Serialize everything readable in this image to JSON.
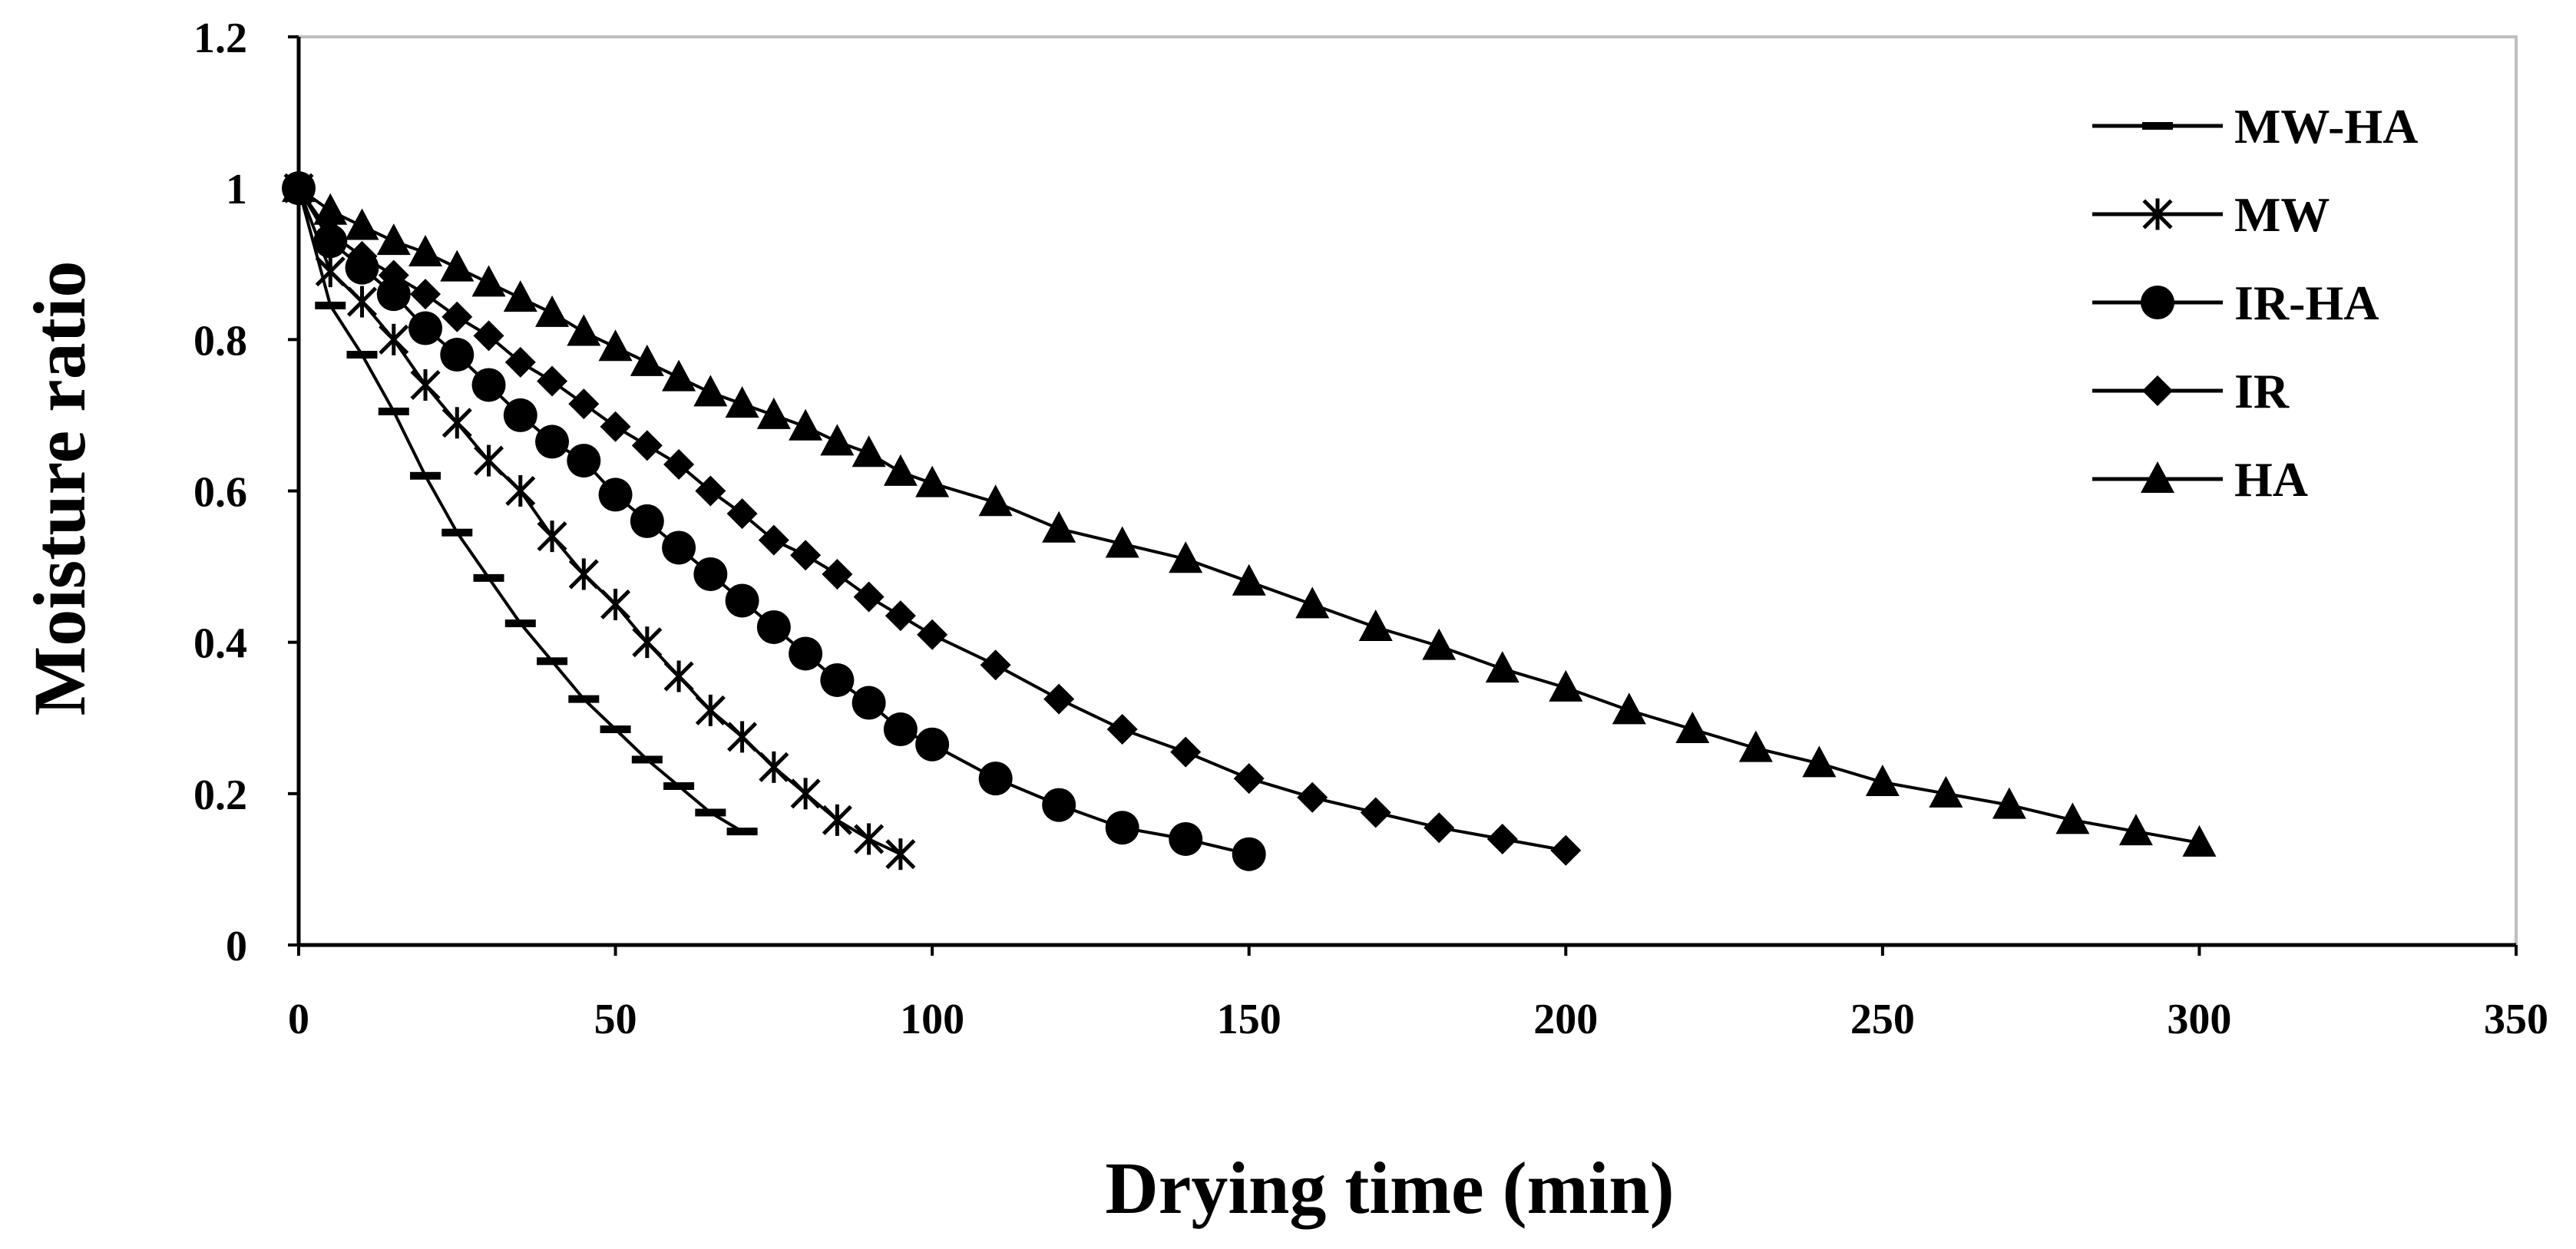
{
  "chart_data": {
    "type": "line",
    "title": "",
    "xlabel": "Drying time (min)",
    "ylabel": "Moisture ratio",
    "xlim": [
      0,
      350
    ],
    "ylim": [
      0,
      1.2
    ],
    "xticks": [
      "0",
      "50",
      "100",
      "150",
      "200",
      "250",
      "300",
      "350"
    ],
    "yticks": [
      "0",
      "0.2",
      "0.4",
      "0.6",
      "0.8",
      "1",
      "1.2"
    ],
    "grid": false,
    "legend_position": "top-right",
    "series": [
      {
        "name": "MW-HA",
        "marker": "dash",
        "x": [
          0,
          5,
          10,
          15,
          20,
          25,
          30,
          35,
          40,
          45,
          50,
          55,
          60,
          65,
          70
        ],
        "y": [
          1.0,
          0.845,
          0.78,
          0.705,
          0.62,
          0.545,
          0.485,
          0.425,
          0.375,
          0.325,
          0.285,
          0.245,
          0.21,
          0.175,
          0.15
        ]
      },
      {
        "name": "MW",
        "marker": "asterisk",
        "x": [
          0,
          5,
          10,
          15,
          20,
          25,
          30,
          35,
          40,
          45,
          50,
          55,
          60,
          65,
          70,
          75,
          80,
          85,
          90,
          95
        ],
        "y": [
          1.0,
          0.89,
          0.85,
          0.8,
          0.74,
          0.69,
          0.64,
          0.6,
          0.54,
          0.49,
          0.45,
          0.4,
          0.355,
          0.31,
          0.275,
          0.235,
          0.2,
          0.165,
          0.14,
          0.12
        ]
      },
      {
        "name": "IR-HA",
        "marker": "circle",
        "x": [
          0,
          5,
          10,
          15,
          20,
          25,
          30,
          35,
          40,
          45,
          50,
          55,
          60,
          65,
          70,
          75,
          80,
          85,
          90,
          95,
          100,
          110,
          120,
          130,
          140,
          150
        ],
        "y": [
          1.0,
          0.93,
          0.895,
          0.86,
          0.815,
          0.78,
          0.74,
          0.7,
          0.665,
          0.64,
          0.595,
          0.56,
          0.525,
          0.49,
          0.455,
          0.42,
          0.385,
          0.35,
          0.32,
          0.285,
          0.265,
          0.22,
          0.185,
          0.155,
          0.14,
          0.12
        ]
      },
      {
        "name": "IR",
        "marker": "diamond",
        "x": [
          0,
          5,
          10,
          15,
          20,
          25,
          30,
          35,
          40,
          45,
          50,
          55,
          60,
          65,
          70,
          75,
          80,
          85,
          90,
          95,
          100,
          110,
          120,
          130,
          140,
          150,
          160,
          170,
          180,
          190,
          200
        ],
        "y": [
          1.0,
          0.94,
          0.91,
          0.885,
          0.86,
          0.83,
          0.805,
          0.77,
          0.745,
          0.715,
          0.685,
          0.66,
          0.635,
          0.6,
          0.57,
          0.535,
          0.515,
          0.49,
          0.46,
          0.435,
          0.41,
          0.37,
          0.325,
          0.285,
          0.255,
          0.22,
          0.195,
          0.175,
          0.155,
          0.14,
          0.125
        ]
      },
      {
        "name": "HA",
        "marker": "triangle",
        "x": [
          0,
          5,
          10,
          15,
          20,
          25,
          30,
          35,
          40,
          45,
          50,
          55,
          60,
          65,
          70,
          75,
          80,
          85,
          90,
          95,
          100,
          110,
          120,
          130,
          140,
          150,
          160,
          170,
          180,
          190,
          200,
          210,
          220,
          230,
          240,
          250,
          260,
          270,
          280,
          290,
          300
        ],
        "y": [
          1.0,
          0.97,
          0.95,
          0.93,
          0.915,
          0.895,
          0.875,
          0.855,
          0.835,
          0.81,
          0.79,
          0.77,
          0.75,
          0.73,
          0.715,
          0.7,
          0.685,
          0.665,
          0.65,
          0.625,
          0.61,
          0.585,
          0.55,
          0.53,
          0.51,
          0.48,
          0.45,
          0.42,
          0.395,
          0.365,
          0.34,
          0.31,
          0.285,
          0.26,
          0.24,
          0.215,
          0.2,
          0.185,
          0.165,
          0.15,
          0.135
        ]
      }
    ]
  }
}
